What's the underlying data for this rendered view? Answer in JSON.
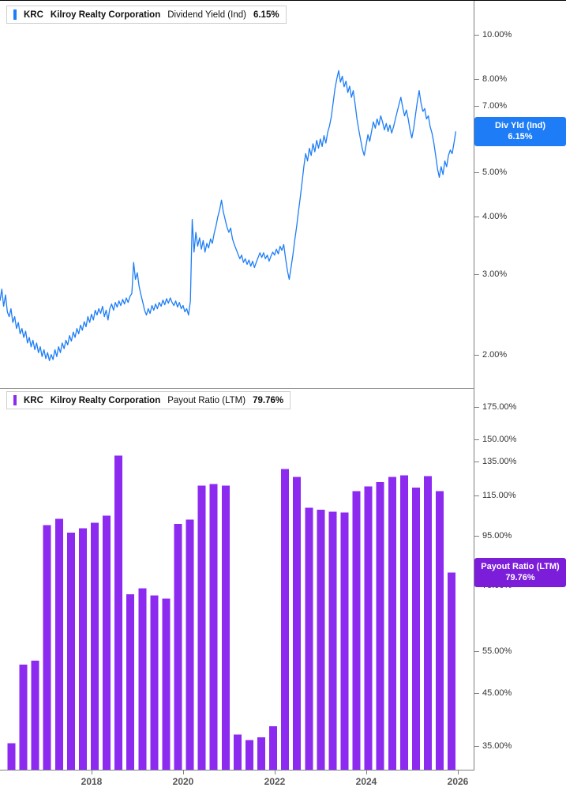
{
  "x_axis": {
    "ticks": [
      2018,
      2020,
      2022,
      2024,
      2026
    ]
  },
  "chart_data": [
    {
      "type": "line",
      "ticker": "KRC",
      "company": "Kilroy Realty Corporation",
      "metric": "Dividend Yield (Ind)",
      "value": "6.15%",
      "color": "#1e7df6",
      "y_scale": "log",
      "xlim": [
        2016.0,
        2026.35
      ],
      "ylim": [
        1.69,
        11.87
      ],
      "y_ticks": [
        10,
        8,
        7,
        6,
        5,
        4,
        3,
        2
      ],
      "y_tick_suffix": ".00%",
      "legend_position": "top-left",
      "badge": {
        "line1": "Div Yld (Ind)",
        "line2": "6.15%",
        "value": 6.15,
        "color": "#1e7df6"
      },
      "points": [
        [
          2016.0,
          2.62
        ],
        [
          2016.04,
          2.78
        ],
        [
          2016.08,
          2.55
        ],
        [
          2016.12,
          2.7
        ],
        [
          2016.16,
          2.48
        ],
        [
          2016.2,
          2.42
        ],
        [
          2016.24,
          2.52
        ],
        [
          2016.28,
          2.35
        ],
        [
          2016.32,
          2.42
        ],
        [
          2016.36,
          2.28
        ],
        [
          2016.4,
          2.35
        ],
        [
          2016.44,
          2.22
        ],
        [
          2016.48,
          2.28
        ],
        [
          2016.52,
          2.18
        ],
        [
          2016.56,
          2.25
        ],
        [
          2016.6,
          2.12
        ],
        [
          2016.64,
          2.18
        ],
        [
          2016.68,
          2.08
        ],
        [
          2016.72,
          2.15
        ],
        [
          2016.76,
          2.05
        ],
        [
          2016.8,
          2.12
        ],
        [
          2016.84,
          2.02
        ],
        [
          2016.88,
          2.08
        ],
        [
          2016.92,
          1.98
        ],
        [
          2016.96,
          2.05
        ],
        [
          2017.0,
          1.96
        ],
        [
          2017.04,
          2.02
        ],
        [
          2017.08,
          1.94
        ],
        [
          2017.12,
          2.0
        ],
        [
          2017.16,
          1.95
        ],
        [
          2017.2,
          2.05
        ],
        [
          2017.24,
          1.98
        ],
        [
          2017.28,
          2.08
        ],
        [
          2017.32,
          2.02
        ],
        [
          2017.36,
          2.12
        ],
        [
          2017.4,
          2.06
        ],
        [
          2017.44,
          2.15
        ],
        [
          2017.48,
          2.1
        ],
        [
          2017.52,
          2.2
        ],
        [
          2017.56,
          2.14
        ],
        [
          2017.6,
          2.24
        ],
        [
          2017.64,
          2.18
        ],
        [
          2017.68,
          2.28
        ],
        [
          2017.72,
          2.22
        ],
        [
          2017.76,
          2.32
        ],
        [
          2017.8,
          2.26
        ],
        [
          2017.84,
          2.36
        ],
        [
          2017.88,
          2.3
        ],
        [
          2017.92,
          2.42
        ],
        [
          2017.96,
          2.35
        ],
        [
          2018.0,
          2.45
        ],
        [
          2018.04,
          2.38
        ],
        [
          2018.08,
          2.5
        ],
        [
          2018.12,
          2.44
        ],
        [
          2018.16,
          2.52
        ],
        [
          2018.2,
          2.46
        ],
        [
          2018.24,
          2.55
        ],
        [
          2018.28,
          2.42
        ],
        [
          2018.32,
          2.5
        ],
        [
          2018.36,
          2.38
        ],
        [
          2018.4,
          2.52
        ],
        [
          2018.44,
          2.58
        ],
        [
          2018.48,
          2.5
        ],
        [
          2018.52,
          2.6
        ],
        [
          2018.56,
          2.54
        ],
        [
          2018.6,
          2.62
        ],
        [
          2018.64,
          2.56
        ],
        [
          2018.68,
          2.64
        ],
        [
          2018.72,
          2.58
        ],
        [
          2018.76,
          2.66
        ],
        [
          2018.8,
          2.6
        ],
        [
          2018.84,
          2.68
        ],
        [
          2018.88,
          2.72
        ],
        [
          2018.92,
          3.18
        ],
        [
          2018.96,
          2.92
        ],
        [
          2019.0,
          3.02
        ],
        [
          2019.04,
          2.82
        ],
        [
          2019.08,
          2.7
        ],
        [
          2019.12,
          2.6
        ],
        [
          2019.16,
          2.5
        ],
        [
          2019.2,
          2.44
        ],
        [
          2019.24,
          2.52
        ],
        [
          2019.28,
          2.46
        ],
        [
          2019.32,
          2.56
        ],
        [
          2019.36,
          2.5
        ],
        [
          2019.4,
          2.58
        ],
        [
          2019.44,
          2.52
        ],
        [
          2019.48,
          2.6
        ],
        [
          2019.52,
          2.55
        ],
        [
          2019.56,
          2.63
        ],
        [
          2019.6,
          2.57
        ],
        [
          2019.64,
          2.65
        ],
        [
          2019.68,
          2.59
        ],
        [
          2019.72,
          2.66
        ],
        [
          2019.76,
          2.6
        ],
        [
          2019.8,
          2.56
        ],
        [
          2019.84,
          2.62
        ],
        [
          2019.88,
          2.54
        ],
        [
          2019.92,
          2.6
        ],
        [
          2019.96,
          2.52
        ],
        [
          2020.0,
          2.56
        ],
        [
          2020.04,
          2.48
        ],
        [
          2020.08,
          2.52
        ],
        [
          2020.12,
          2.44
        ],
        [
          2020.16,
          2.62
        ],
        [
          2020.2,
          3.95
        ],
        [
          2020.24,
          3.35
        ],
        [
          2020.28,
          3.7
        ],
        [
          2020.32,
          3.45
        ],
        [
          2020.36,
          3.6
        ],
        [
          2020.4,
          3.4
        ],
        [
          2020.44,
          3.55
        ],
        [
          2020.48,
          3.35
        ],
        [
          2020.52,
          3.5
        ],
        [
          2020.56,
          3.42
        ],
        [
          2020.6,
          3.58
        ],
        [
          2020.64,
          3.5
        ],
        [
          2020.68,
          3.68
        ],
        [
          2020.72,
          3.82
        ],
        [
          2020.76,
          4.0
        ],
        [
          2020.8,
          4.15
        ],
        [
          2020.84,
          4.35
        ],
        [
          2020.88,
          4.1
        ],
        [
          2020.92,
          3.95
        ],
        [
          2020.96,
          3.8
        ],
        [
          2021.0,
          3.7
        ],
        [
          2021.04,
          3.78
        ],
        [
          2021.08,
          3.58
        ],
        [
          2021.12,
          3.48
        ],
        [
          2021.16,
          3.4
        ],
        [
          2021.2,
          3.32
        ],
        [
          2021.24,
          3.24
        ],
        [
          2021.28,
          3.3
        ],
        [
          2021.32,
          3.18
        ],
        [
          2021.36,
          3.24
        ],
        [
          2021.4,
          3.15
        ],
        [
          2021.44,
          3.22
        ],
        [
          2021.48,
          3.12
        ],
        [
          2021.52,
          3.2
        ],
        [
          2021.56,
          3.1
        ],
        [
          2021.6,
          3.18
        ],
        [
          2021.64,
          3.26
        ],
        [
          2021.68,
          3.34
        ],
        [
          2021.72,
          3.26
        ],
        [
          2021.76,
          3.34
        ],
        [
          2021.8,
          3.24
        ],
        [
          2021.84,
          3.3
        ],
        [
          2021.88,
          3.2
        ],
        [
          2021.92,
          3.28
        ],
        [
          2021.96,
          3.35
        ],
        [
          2022.0,
          3.3
        ],
        [
          2022.04,
          3.4
        ],
        [
          2022.08,
          3.32
        ],
        [
          2022.12,
          3.45
        ],
        [
          2022.16,
          3.38
        ],
        [
          2022.2,
          3.48
        ],
        [
          2022.24,
          3.25
        ],
        [
          2022.28,
          3.05
        ],
        [
          2022.32,
          2.92
        ],
        [
          2022.36,
          3.1
        ],
        [
          2022.4,
          3.3
        ],
        [
          2022.44,
          3.55
        ],
        [
          2022.48,
          3.8
        ],
        [
          2022.52,
          4.1
        ],
        [
          2022.56,
          4.4
        ],
        [
          2022.6,
          4.75
        ],
        [
          2022.64,
          5.15
        ],
        [
          2022.68,
          5.5
        ],
        [
          2022.72,
          5.3
        ],
        [
          2022.76,
          5.65
        ],
        [
          2022.8,
          5.45
        ],
        [
          2022.84,
          5.78
        ],
        [
          2022.88,
          5.55
        ],
        [
          2022.92,
          5.88
        ],
        [
          2022.96,
          5.65
        ],
        [
          2023.0,
          5.92
        ],
        [
          2023.04,
          5.7
        ],
        [
          2023.08,
          6.02
        ],
        [
          2023.12,
          5.8
        ],
        [
          2023.16,
          6.12
        ],
        [
          2023.2,
          6.32
        ],
        [
          2023.24,
          6.62
        ],
        [
          2023.28,
          7.1
        ],
        [
          2023.32,
          7.62
        ],
        [
          2023.36,
          8.02
        ],
        [
          2023.4,
          8.35
        ],
        [
          2023.44,
          7.88
        ],
        [
          2023.48,
          8.12
        ],
        [
          2023.52,
          7.7
        ],
        [
          2023.56,
          7.92
        ],
        [
          2023.6,
          7.48
        ],
        [
          2023.64,
          7.72
        ],
        [
          2023.68,
          7.3
        ],
        [
          2023.72,
          7.55
        ],
        [
          2023.76,
          7.05
        ],
        [
          2023.8,
          6.55
        ],
        [
          2023.84,
          6.2
        ],
        [
          2023.88,
          5.9
        ],
        [
          2023.92,
          5.62
        ],
        [
          2023.96,
          5.45
        ],
        [
          2024.0,
          5.75
        ],
        [
          2024.04,
          6.05
        ],
        [
          2024.08,
          5.85
        ],
        [
          2024.12,
          6.15
        ],
        [
          2024.16,
          6.45
        ],
        [
          2024.2,
          6.25
        ],
        [
          2024.24,
          6.55
        ],
        [
          2024.28,
          6.35
        ],
        [
          2024.32,
          6.65
        ],
        [
          2024.36,
          6.45
        ],
        [
          2024.4,
          6.2
        ],
        [
          2024.44,
          6.4
        ],
        [
          2024.48,
          6.15
        ],
        [
          2024.52,
          6.35
        ],
        [
          2024.56,
          6.1
        ],
        [
          2024.6,
          6.3
        ],
        [
          2024.64,
          6.55
        ],
        [
          2024.68,
          6.8
        ],
        [
          2024.72,
          7.05
        ],
        [
          2024.76,
          7.3
        ],
        [
          2024.8,
          6.95
        ],
        [
          2024.84,
          6.65
        ],
        [
          2024.88,
          6.85
        ],
        [
          2024.92,
          6.55
        ],
        [
          2024.96,
          6.2
        ],
        [
          2025.0,
          5.95
        ],
        [
          2025.04,
          6.25
        ],
        [
          2025.08,
          6.7
        ],
        [
          2025.12,
          7.15
        ],
        [
          2025.16,
          7.55
        ],
        [
          2025.2,
          7.1
        ],
        [
          2025.24,
          6.8
        ],
        [
          2025.28,
          6.9
        ],
        [
          2025.32,
          6.55
        ],
        [
          2025.36,
          6.65
        ],
        [
          2025.4,
          6.3
        ],
        [
          2025.44,
          6.1
        ],
        [
          2025.48,
          5.8
        ],
        [
          2025.52,
          5.45
        ],
        [
          2025.56,
          5.1
        ],
        [
          2025.6,
          4.88
        ],
        [
          2025.64,
          5.15
        ],
        [
          2025.68,
          4.95
        ],
        [
          2025.72,
          5.3
        ],
        [
          2025.76,
          5.15
        ],
        [
          2025.8,
          5.45
        ],
        [
          2025.84,
          5.6
        ],
        [
          2025.88,
          5.5
        ],
        [
          2025.92,
          5.8
        ],
        [
          2025.96,
          6.15
        ]
      ]
    },
    {
      "type": "bar",
      "ticker": "KRC",
      "company": "Kilroy Realty Corporation",
      "metric": "Payout Ratio (LTM)",
      "value": "79.76%",
      "color": "#8c2af0",
      "y_scale": "log",
      "xlim": [
        2016.0,
        2026.35
      ],
      "ylim": [
        31.3,
        191.5
      ],
      "y_ticks": [
        175,
        150,
        135,
        115,
        95,
        75,
        55,
        45,
        35
      ],
      "y_tick_suffix": ".00%",
      "legend_position": "top-left",
      "badge": {
        "line1": "Payout Ratio (LTM)",
        "line2": "79.76%",
        "value": 79.76,
        "color": "#7c1ed9"
      },
      "bars": {
        "start_year": 2016.25,
        "step_years": 0.26,
        "values": [
          35.5,
          51.5,
          52.5,
          100,
          103,
          96.5,
          98.5,
          101,
          104.5,
          139,
          72,
          74,
          71.5,
          70.5,
          100.5,
          102.5,
          120.5,
          121.5,
          120.5,
          37,
          36,
          36.5,
          38.5,
          130.5,
          125.5,
          108.5,
          107.5,
          106.5,
          106,
          117.5,
          120,
          122.5,
          125.5,
          126.5,
          119.5,
          126,
          117.5,
          79.76
        ]
      }
    }
  ]
}
